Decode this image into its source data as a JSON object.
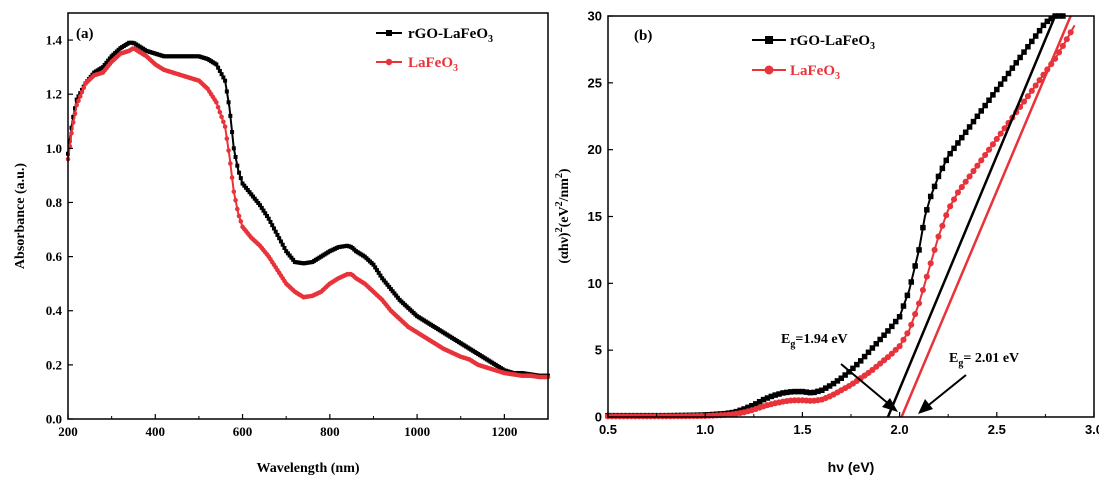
{
  "colors": {
    "series1": "#000000",
    "series2": "#e8333a"
  },
  "chart_data": [
    {
      "type": "line",
      "panel_label": "(a)",
      "title": "",
      "xlabel": "Wavelength (nm)",
      "ylabel": "Absorbance (a.u.)",
      "xlim": [
        200,
        1300
      ],
      "ylim": [
        0.0,
        1.5
      ],
      "xticks": [
        "200",
        "400",
        "600",
        "800",
        "1000",
        "1200"
      ],
      "yticks": [
        "0.0",
        "0.2",
        "0.4",
        "0.6",
        "0.8",
        "1.0",
        "1.2",
        "1.4"
      ],
      "legend_position": "top-right",
      "series": [
        {
          "name": "rGO-LaFeO",
          "name_sub": "3",
          "x": [
            200,
            210,
            220,
            240,
            260,
            280,
            300,
            320,
            340,
            350,
            360,
            380,
            400,
            420,
            440,
            460,
            480,
            500,
            520,
            540,
            560,
            570,
            580,
            590,
            600,
            620,
            640,
            660,
            680,
            700,
            720,
            740,
            760,
            780,
            800,
            820,
            840,
            850,
            860,
            880,
            900,
            920,
            940,
            960,
            980,
            1000,
            1020,
            1040,
            1060,
            1080,
            1100,
            1120,
            1140,
            1160,
            1180,
            1200,
            1220,
            1240,
            1260,
            1280,
            1300
          ],
          "y": [
            0.98,
            1.1,
            1.18,
            1.24,
            1.28,
            1.3,
            1.34,
            1.37,
            1.39,
            1.39,
            1.38,
            1.36,
            1.35,
            1.34,
            1.34,
            1.34,
            1.34,
            1.34,
            1.33,
            1.31,
            1.25,
            1.15,
            1.0,
            0.92,
            0.87,
            0.83,
            0.79,
            0.74,
            0.68,
            0.62,
            0.58,
            0.575,
            0.58,
            0.6,
            0.62,
            0.635,
            0.64,
            0.635,
            0.62,
            0.6,
            0.57,
            0.52,
            0.48,
            0.44,
            0.41,
            0.38,
            0.36,
            0.34,
            0.32,
            0.3,
            0.28,
            0.26,
            0.24,
            0.22,
            0.2,
            0.18,
            0.17,
            0.17,
            0.165,
            0.16,
            0.16
          ]
        },
        {
          "name": "LaFeO",
          "name_sub": "3",
          "x": [
            200,
            210,
            220,
            240,
            260,
            280,
            300,
            320,
            340,
            350,
            360,
            380,
            400,
            420,
            440,
            460,
            480,
            500,
            520,
            540,
            560,
            570,
            580,
            590,
            600,
            620,
            640,
            660,
            680,
            700,
            720,
            740,
            760,
            780,
            800,
            820,
            840,
            850,
            860,
            880,
            900,
            920,
            940,
            960,
            980,
            1000,
            1020,
            1040,
            1060,
            1080,
            1100,
            1120,
            1140,
            1160,
            1180,
            1200,
            1220,
            1240,
            1260,
            1280,
            1300
          ],
          "y": [
            0.96,
            1.08,
            1.16,
            1.24,
            1.27,
            1.28,
            1.32,
            1.35,
            1.36,
            1.37,
            1.36,
            1.34,
            1.31,
            1.29,
            1.28,
            1.27,
            1.26,
            1.25,
            1.22,
            1.17,
            1.08,
            0.97,
            0.84,
            0.76,
            0.71,
            0.67,
            0.64,
            0.6,
            0.55,
            0.5,
            0.47,
            0.45,
            0.455,
            0.47,
            0.5,
            0.52,
            0.535,
            0.535,
            0.52,
            0.5,
            0.47,
            0.44,
            0.4,
            0.37,
            0.34,
            0.32,
            0.3,
            0.28,
            0.26,
            0.245,
            0.23,
            0.22,
            0.2,
            0.19,
            0.18,
            0.17,
            0.165,
            0.16,
            0.16,
            0.155,
            0.155
          ]
        }
      ]
    },
    {
      "type": "line",
      "panel_label": "(b)",
      "title": "",
      "xlabel": "hν (eV)",
      "ylabel_parts": [
        "(αhν)",
        "2",
        "(eV",
        "2",
        "/nm",
        "2",
        ")"
      ],
      "xlim": [
        0.5,
        3.0
      ],
      "ylim": [
        0,
        30
      ],
      "xticks": [
        "0.5",
        "1.0",
        "1.5",
        "2.0",
        "2.5",
        "3.0"
      ],
      "yticks": [
        "0",
        "5",
        "10",
        "15",
        "20",
        "25",
        "30"
      ],
      "legend_position": "top-left",
      "series": [
        {
          "name": "rGO-LaFeO",
          "name_sub": "3",
          "x": [
            0.5,
            0.6,
            0.7,
            0.8,
            0.9,
            1.0,
            1.1,
            1.15,
            1.2,
            1.25,
            1.3,
            1.35,
            1.4,
            1.45,
            1.5,
            1.55,
            1.6,
            1.65,
            1.7,
            1.75,
            1.8,
            1.85,
            1.9,
            1.95,
            2.0,
            2.05,
            2.1,
            2.13,
            2.16,
            2.2,
            2.25,
            2.3,
            2.35,
            2.4,
            2.45,
            2.5,
            2.55,
            2.6,
            2.65,
            2.7,
            2.75,
            2.8,
            2.85
          ],
          "y": [
            0.1,
            0.1,
            0.1,
            0.1,
            0.12,
            0.15,
            0.25,
            0.35,
            0.6,
            0.9,
            1.3,
            1.6,
            1.8,
            1.9,
            1.9,
            1.8,
            2.0,
            2.4,
            2.9,
            3.5,
            4.2,
            5.0,
            5.8,
            6.6,
            7.5,
            9.5,
            12.5,
            15.0,
            16.5,
            18.0,
            19.5,
            20.5,
            21.5,
            22.5,
            23.5,
            24.5,
            25.5,
            26.5,
            27.5,
            28.5,
            29.5,
            30.0,
            30.0
          ]
        },
        {
          "name": "LaFeO",
          "name_sub": "3",
          "x": [
            0.5,
            0.6,
            0.7,
            0.8,
            0.9,
            1.0,
            1.1,
            1.15,
            1.2,
            1.25,
            1.3,
            1.35,
            1.4,
            1.45,
            1.5,
            1.55,
            1.6,
            1.65,
            1.7,
            1.75,
            1.8,
            1.85,
            1.9,
            1.95,
            2.0,
            2.05,
            2.1,
            2.15,
            2.2,
            2.25,
            2.3,
            2.35,
            2.4,
            2.45,
            2.5,
            2.55,
            2.6,
            2.65,
            2.7,
            2.75,
            2.8,
            2.85,
            2.9
          ],
          "y": [
            0.05,
            0.05,
            0.05,
            0.05,
            0.06,
            0.08,
            0.15,
            0.22,
            0.35,
            0.55,
            0.8,
            1.0,
            1.15,
            1.25,
            1.25,
            1.2,
            1.3,
            1.6,
            2.0,
            2.4,
            2.9,
            3.4,
            4.0,
            4.6,
            5.3,
            6.5,
            8.5,
            11.0,
            13.5,
            15.5,
            16.8,
            17.8,
            18.8,
            19.8,
            20.8,
            21.8,
            22.8,
            23.8,
            24.8,
            25.8,
            26.8,
            28.0,
            29.3
          ]
        }
      ],
      "fit_lines": [
        {
          "series": 0,
          "x": [
            1.94,
            2.8
          ],
          "y": [
            0,
            30
          ]
        },
        {
          "series": 1,
          "x": [
            2.01,
            2.88
          ],
          "y": [
            0,
            30
          ]
        }
      ],
      "annotations": [
        {
          "label": "E",
          "sub": "g",
          "value": "=1.94 eV"
        },
        {
          "label": "E",
          "sub": "g",
          "value": "= 2.01 eV"
        }
      ]
    }
  ]
}
